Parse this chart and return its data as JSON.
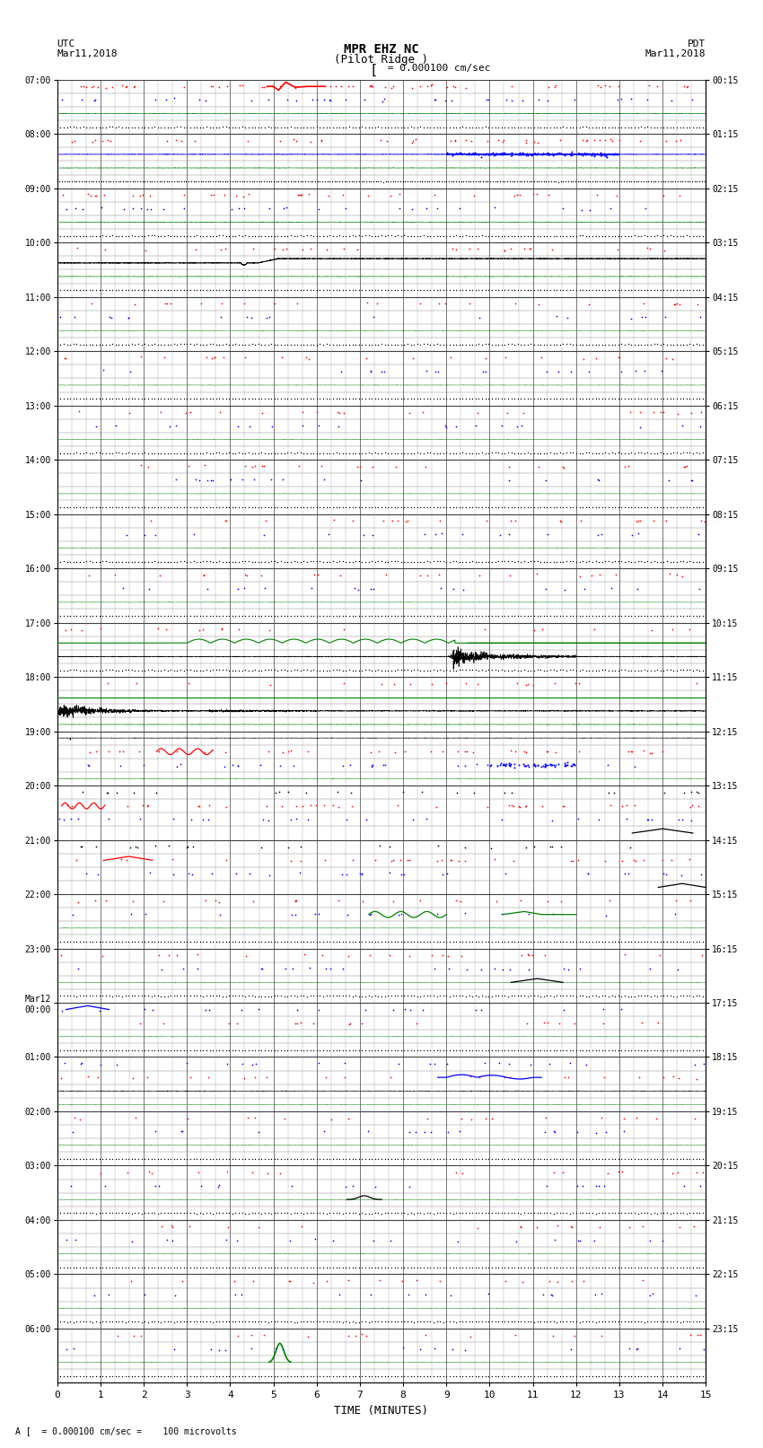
{
  "title_line1": "MPR EHZ NC",
  "title_line2": "(Pilot Ridge )",
  "scale_label": "= 0.000100 cm/sec",
  "left_header": "UTC",
  "left_date": "Mar11,2018",
  "right_header": "PDT",
  "right_date": "Mar11,2018",
  "bottom_label": "TIME (MINUTES)",
  "footer_text": "= 0.000100 cm/sec =    100 microvolts",
  "x_ticks": [
    0,
    1,
    2,
    3,
    4,
    5,
    6,
    7,
    8,
    9,
    10,
    11,
    12,
    13,
    14,
    15
  ],
  "utc_times": [
    "07:00",
    "08:00",
    "09:00",
    "10:00",
    "11:00",
    "12:00",
    "13:00",
    "14:00",
    "15:00",
    "16:00",
    "17:00",
    "18:00",
    "19:00",
    "20:00",
    "21:00",
    "22:00",
    "23:00",
    "Mar12\n00:00",
    "01:00",
    "02:00",
    "03:00",
    "04:00",
    "05:00",
    "06:00"
  ],
  "pdt_times": [
    "00:15",
    "01:15",
    "02:15",
    "03:15",
    "04:15",
    "05:15",
    "06:15",
    "07:15",
    "08:15",
    "09:15",
    "10:15",
    "11:15",
    "12:15",
    "13:15",
    "14:15",
    "15:15",
    "16:15",
    "17:15",
    "18:15",
    "19:15",
    "20:15",
    "21:15",
    "22:15",
    "23:15"
  ],
  "n_rows": 24,
  "bg_color": "#ffffff",
  "grid_color": "#404040",
  "subgrid_color": "#808080"
}
